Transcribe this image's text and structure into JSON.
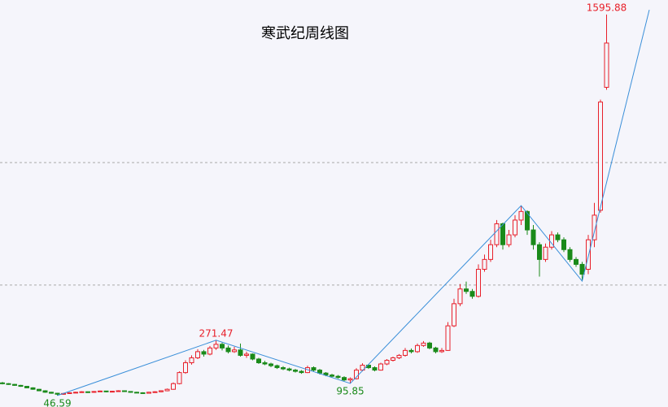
{
  "chart_data": {
    "type": "candlestick",
    "title": "寒武纪周线图",
    "ylim": [
      0,
      1655
    ],
    "hlines": [
      994,
      496
    ],
    "up_color": "#e8202a",
    "down_color": "#1a8a1a",
    "zigzag_color": "#3a8fd9",
    "background": "#f5f5fb",
    "candles": [
      [
        98,
        102,
        92,
        95
      ],
      [
        95,
        97,
        90,
        92
      ],
      [
        92,
        94,
        86,
        88
      ],
      [
        88,
        90,
        82,
        84
      ],
      [
        84,
        86,
        76,
        78
      ],
      [
        78,
        80,
        70,
        72
      ],
      [
        72,
        74,
        64,
        66
      ],
      [
        66,
        68,
        58,
        60
      ],
      [
        60,
        62,
        54,
        56
      ],
      [
        56,
        58,
        46.59,
        52
      ],
      [
        52,
        58,
        50,
        55
      ],
      [
        55,
        60,
        53,
        58
      ],
      [
        58,
        62,
        56,
        60
      ],
      [
        60,
        64,
        58,
        62
      ],
      [
        62,
        63,
        57,
        60
      ],
      [
        60,
        65,
        58,
        63
      ],
      [
        63,
        67,
        61,
        65
      ],
      [
        65,
        66,
        60,
        62
      ],
      [
        62,
        66,
        60,
        64
      ],
      [
        64,
        68,
        62,
        66
      ],
      [
        66,
        67,
        61,
        63
      ],
      [
        63,
        64,
        58,
        60
      ],
      [
        60,
        62,
        56,
        58
      ],
      [
        58,
        60,
        54,
        56
      ],
      [
        56,
        62,
        55,
        60
      ],
      [
        60,
        64,
        58,
        62
      ],
      [
        62,
        68,
        60,
        66
      ],
      [
        66,
        75,
        64,
        72
      ],
      [
        72,
        100,
        70,
        95
      ],
      [
        95,
        145,
        92,
        140
      ],
      [
        140,
        190,
        135,
        180
      ],
      [
        180,
        210,
        172,
        200
      ],
      [
        200,
        235,
        195,
        225
      ],
      [
        225,
        232,
        205,
        215
      ],
      [
        215,
        248,
        210,
        240
      ],
      [
        240,
        271.47,
        232,
        255
      ],
      [
        255,
        262,
        230,
        240
      ],
      [
        240,
        250,
        218,
        225
      ],
      [
        225,
        245,
        220,
        232
      ],
      [
        232,
        258,
        205,
        210
      ],
      [
        210,
        225,
        200,
        215
      ],
      [
        215,
        218,
        190,
        195
      ],
      [
        195,
        200,
        175,
        180
      ],
      [
        180,
        188,
        170,
        175
      ],
      [
        175,
        180,
        162,
        168
      ],
      [
        168,
        172,
        155,
        160
      ],
      [
        160,
        166,
        150,
        155
      ],
      [
        155,
        160,
        145,
        150
      ],
      [
        150,
        155,
        140,
        145
      ],
      [
        145,
        150,
        135,
        140
      ],
      [
        140,
        168,
        138,
        160
      ],
      [
        160,
        165,
        145,
        150
      ],
      [
        150,
        155,
        132,
        138
      ],
      [
        138,
        142,
        125,
        130
      ],
      [
        130,
        135,
        120,
        125
      ],
      [
        125,
        130,
        115,
        120
      ],
      [
        120,
        125,
        105,
        110
      ],
      [
        110,
        120,
        95.85,
        115
      ],
      [
        115,
        158,
        112,
        150
      ],
      [
        150,
        178,
        145,
        170
      ],
      [
        170,
        175,
        155,
        160
      ],
      [
        160,
        165,
        145,
        150
      ],
      [
        150,
        180,
        148,
        175
      ],
      [
        175,
        195,
        170,
        190
      ],
      [
        190,
        205,
        185,
        200
      ],
      [
        200,
        215,
        195,
        210
      ],
      [
        210,
        240,
        205,
        230
      ],
      [
        230,
        238,
        218,
        225
      ],
      [
        225,
        258,
        220,
        250
      ],
      [
        250,
        268,
        245,
        260
      ],
      [
        260,
        265,
        235,
        240
      ],
      [
        240,
        245,
        218,
        225
      ],
      [
        225,
        240,
        220,
        230
      ],
      [
        230,
        345,
        228,
        330
      ],
      [
        330,
        440,
        325,
        420
      ],
      [
        420,
        500,
        410,
        480
      ],
      [
        480,
        510,
        460,
        470
      ],
      [
        470,
        480,
        440,
        450
      ],
      [
        450,
        580,
        445,
        560
      ],
      [
        560,
        620,
        550,
        600
      ],
      [
        600,
        680,
        590,
        660
      ],
      [
        660,
        760,
        650,
        745
      ],
      [
        745,
        750,
        640,
        660
      ],
      [
        660,
        720,
        650,
        700
      ],
      [
        700,
        780,
        690,
        760
      ],
      [
        760,
        819,
        740,
        795
      ],
      [
        795,
        800,
        700,
        720
      ],
      [
        720,
        740,
        640,
        660
      ],
      [
        660,
        670,
        530,
        600
      ],
      [
        600,
        665,
        590,
        650
      ],
      [
        650,
        715,
        640,
        700
      ],
      [
        700,
        710,
        670,
        680
      ],
      [
        680,
        690,
        630,
        640
      ],
      [
        640,
        650,
        590,
        600
      ],
      [
        600,
        610,
        570,
        580
      ],
      [
        580,
        590,
        512,
        540
      ],
      [
        560,
        700,
        540,
        680
      ],
      [
        680,
        830,
        650,
        780
      ],
      [
        800,
        1250,
        790,
        1240
      ],
      [
        1300,
        1595.88,
        1290,
        1480
      ]
    ],
    "marked_highs": [
      35,
      99
    ],
    "marked_lows": [
      9,
      57
    ],
    "zigzag": {
      "x": [
        9,
        35,
        57,
        85,
        95,
        106
      ],
      "values": [
        46.59,
        271.47,
        95.85,
        819,
        512,
        1615
      ]
    }
  }
}
